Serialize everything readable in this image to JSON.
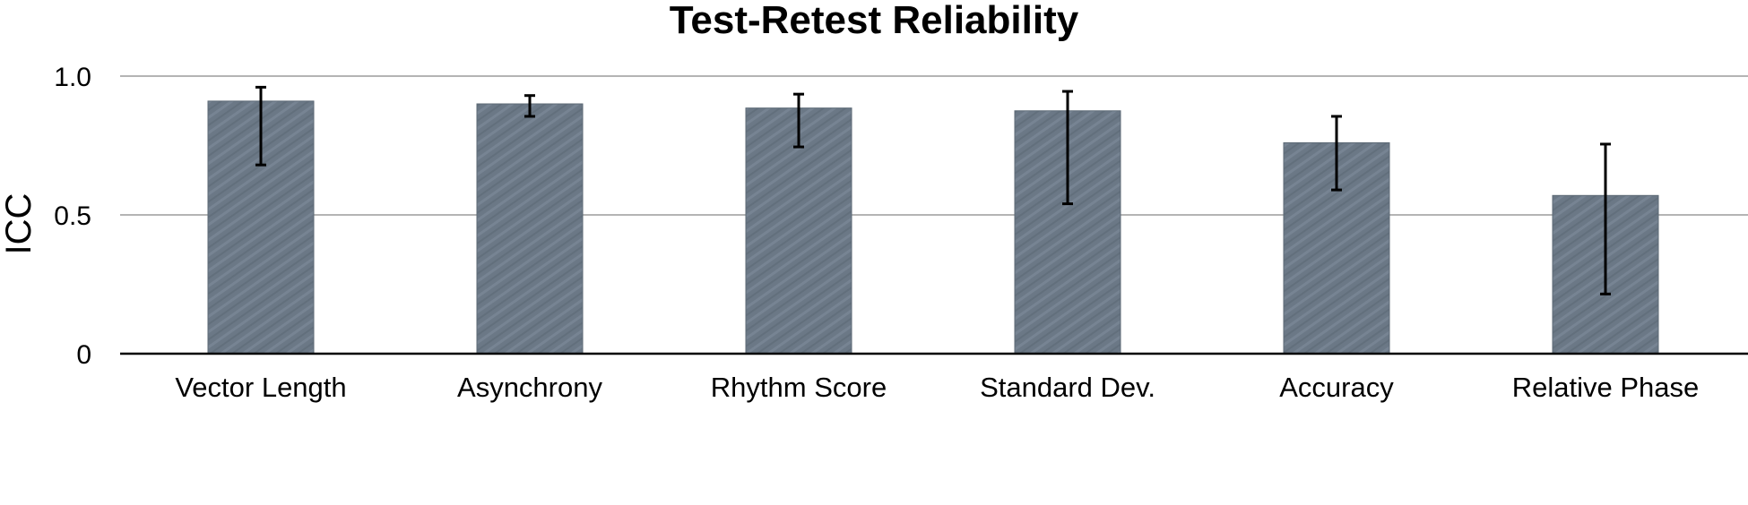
{
  "chart_data": {
    "type": "bar",
    "title": "Test-Retest Reliability",
    "ylabel": "ICC",
    "xlabel": "",
    "categories": [
      "Vector Length",
      "Asynchrony",
      "Rhythm Score",
      "Standard Dev.",
      "Accuracy",
      "Relative Phase"
    ],
    "values": [
      0.91,
      0.9,
      0.885,
      0.875,
      0.76,
      0.57
    ],
    "error_low": [
      0.68,
      0.855,
      0.745,
      0.54,
      0.59,
      0.215
    ],
    "error_high": [
      0.96,
      0.93,
      0.935,
      0.945,
      0.855,
      0.755
    ],
    "ylim": [
      0,
      1.0
    ],
    "yticks": [
      {
        "value": 0,
        "label": "0"
      },
      {
        "value": 0.5,
        "label": "0.5"
      },
      {
        "value": 1.0,
        "label": "1.0"
      }
    ],
    "grid": true,
    "bar_color": "#6b7886"
  }
}
